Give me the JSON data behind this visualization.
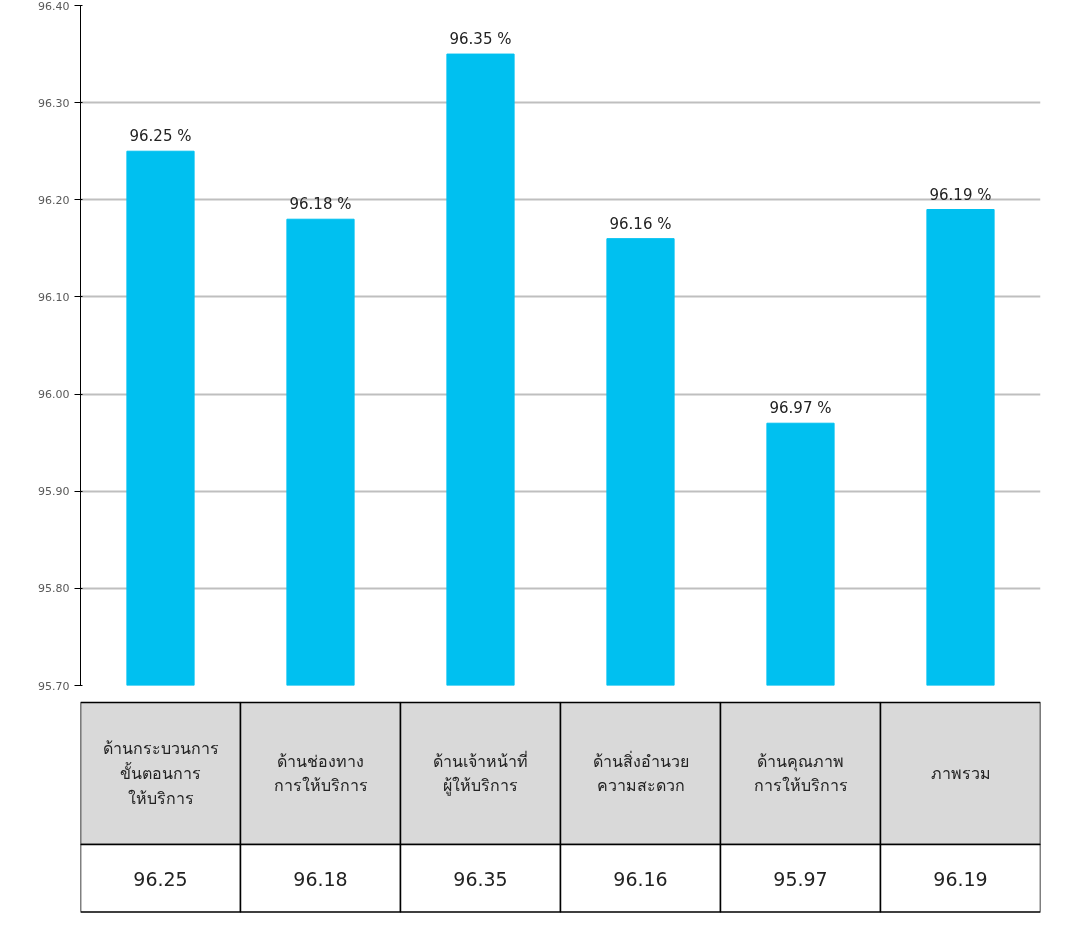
{
  "chart_data": {
    "type": "bar",
    "categories": [
      "ด้านกระบวนการ\nขั้นตอนการ\nให้บริการ",
      "ด้านช่องทาง\nการให้บริการ",
      "ด้านเจ้าหน้าที่\nผู้ให้บริการ",
      "ด้านสิ่งอำนวย\nความสะดวก",
      "ด้านคุณภาพ\nการให้บริการ",
      "ภาพรวม"
    ],
    "values": [
      96.25,
      96.18,
      96.35,
      96.16,
      95.97,
      96.19
    ],
    "value_labels": [
      "96.25",
      "96.18",
      "96.35",
      "96.16",
      "95.97",
      "96.19"
    ],
    "annotations": [
      {
        "text": "96.25 %",
        "x": "ด้านกระบวนการ\nขั้นตอนการ\nให้บริการ",
        "y": 96.25
      },
      {
        "text": "96.18 %",
        "x": "ด้านช่องทาง\nการให้บริการ",
        "y": 96.18
      },
      {
        "text": "96.35 %",
        "x": "ด้านเจ้าหน้าที่\nผู้ให้บริการ",
        "y": 96.35
      },
      {
        "text": "96.16 %",
        "x": "ด้านสิ่งอำนวย\nความสะดวก",
        "y": 96.16
      },
      {
        "text": "96.97 %",
        "x": "ด้านคุณภาพ\nการให้บริการ",
        "y": 95.97
      },
      {
        "text": "96.19 %",
        "x": "ภาพรวม",
        "y": 96.19
      }
    ],
    "color": "#00c0f0",
    "ylim": [
      95.7,
      96.4
    ],
    "yticks": [
      {
        "value": 95.7,
        "label": "95.70"
      },
      {
        "value": 95.8,
        "label": "95.80"
      },
      {
        "value": 95.9,
        "label": "95.90"
      },
      {
        "value": 96.0,
        "label": "96.00"
      },
      {
        "value": 96.1,
        "label": "96.10"
      },
      {
        "value": 96.2,
        "label": "96.20"
      },
      {
        "value": 96.3,
        "label": "96.30"
      },
      {
        "value": 96.4,
        "label": "96.40"
      }
    ],
    "grid": "y"
  }
}
